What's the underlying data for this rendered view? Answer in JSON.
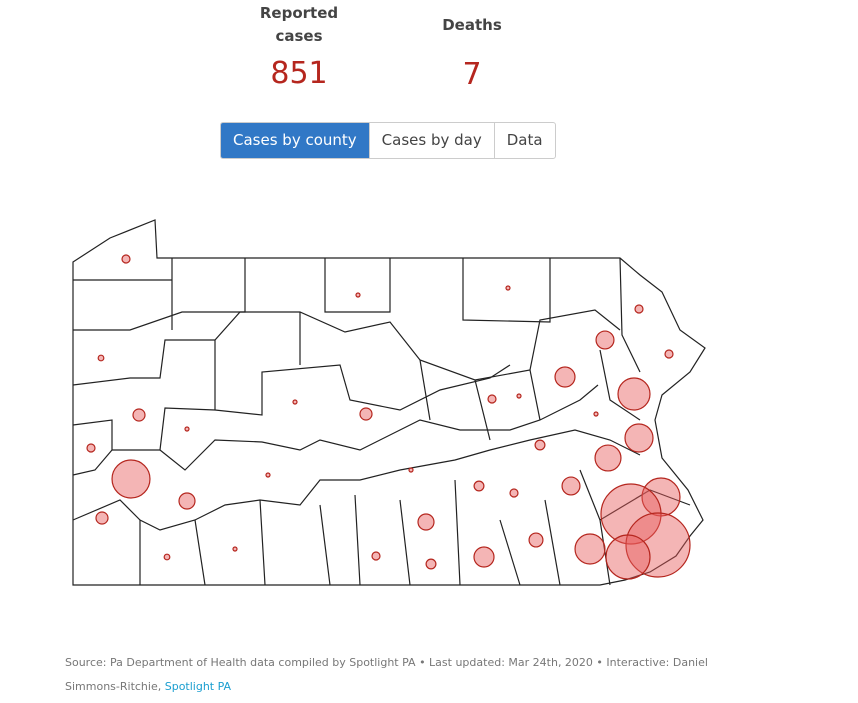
{
  "stats": [
    {
      "label": "Reported cases",
      "value": "851"
    },
    {
      "label": "Deaths",
      "value": "7"
    }
  ],
  "tabs": [
    "Cases by county",
    "Cases by day",
    "Data"
  ],
  "map": {
    "bubbles": [
      4,
      1,
      1,
      4,
      20,
      4,
      2,
      25,
      64,
      9,
      1,
      9,
      4,
      1,
      1,
      1,
      4,
      49,
      6,
      42,
      90,
      1,
      1,
      20,
      6,
      4,
      90,
      16,
      225,
      9,
      16,
      12,
      56,
      256,
      121,
      4,
      25,
      6,
      2,
      1
    ]
  },
  "footer": {
    "source": "Source: Pa Department of Health data compiled by Spotlight PA • Last updated: Mar 24th, 2020 • Interactive: Daniel Simmons-Ritchie,",
    "link": "Spotlight PA"
  }
}
